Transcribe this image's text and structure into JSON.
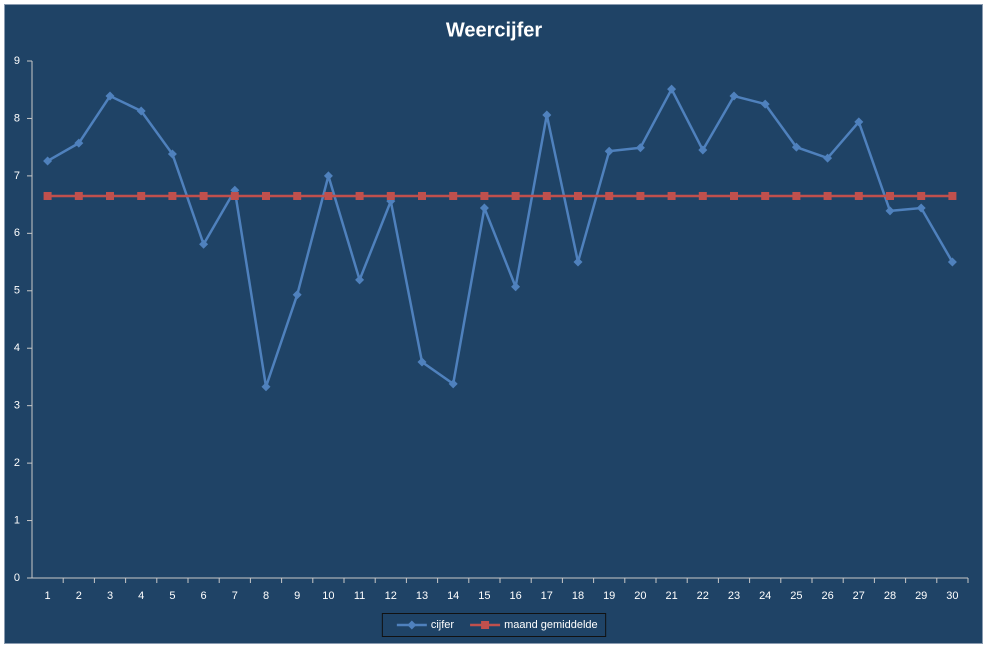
{
  "chart_data": {
    "type": "line",
    "title": "Weercijfer",
    "categories": [
      1,
      2,
      3,
      4,
      5,
      6,
      7,
      8,
      9,
      10,
      11,
      12,
      13,
      14,
      15,
      16,
      17,
      18,
      19,
      20,
      21,
      22,
      23,
      24,
      25,
      26,
      27,
      28,
      29,
      30
    ],
    "series": [
      {
        "name": "cijfer",
        "color": "#4f81bd",
        "marker": "diamond",
        "values": [
          7.26,
          7.57,
          8.39,
          8.13,
          7.38,
          5.81,
          6.75,
          3.33,
          4.93,
          7.0,
          5.19,
          6.56,
          3.76,
          3.38,
          6.44,
          5.07,
          8.06,
          5.5,
          7.43,
          7.49,
          8.51,
          7.45,
          8.39,
          8.25,
          7.5,
          7.31,
          7.94,
          6.39,
          6.44,
          5.5
        ]
      },
      {
        "name": "maand gemiddelde",
        "color": "#c0504d",
        "marker": "square",
        "values": [
          6.65,
          6.65,
          6.65,
          6.65,
          6.65,
          6.65,
          6.65,
          6.65,
          6.65,
          6.65,
          6.65,
          6.65,
          6.65,
          6.65,
          6.65,
          6.65,
          6.65,
          6.65,
          6.65,
          6.65,
          6.65,
          6.65,
          6.65,
          6.65,
          6.65,
          6.65,
          6.65,
          6.65,
          6.65,
          6.65
        ]
      }
    ],
    "ylim": [
      0,
      9
    ],
    "yticks": [
      0,
      1,
      2,
      3,
      4,
      5,
      6,
      7,
      8,
      9
    ],
    "grid": false,
    "legend": "bottom"
  }
}
